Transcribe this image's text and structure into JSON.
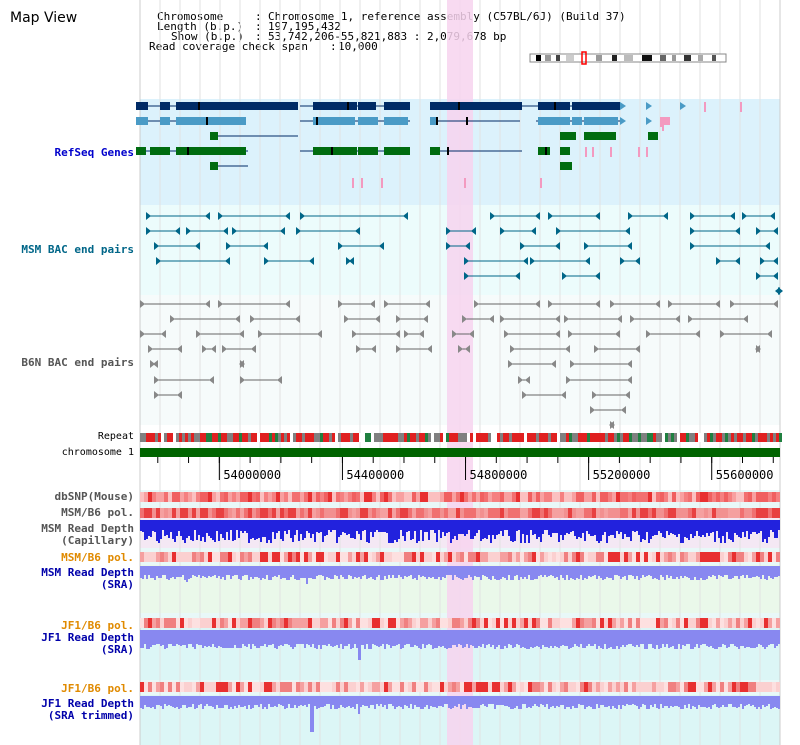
{
  "page": {
    "title": "Map View"
  },
  "header": {
    "chromosome_key": "Chromosome",
    "chromosome_val": "Chromosome 1, reference assembly (C57BL/6J) (Build 37)",
    "length_key": "Length (b.p.)",
    "length_val": "197,195,432",
    "show_key": "Show (b.p.)",
    "show_val": "53,742,206-55,821,883 : 2,079,678 bp",
    "coverage_key": "Read coverage check span",
    "coverage_val": "10,000"
  },
  "tracks": {
    "refseq": {
      "label": "RefSeq Genes",
      "color": "#0000cc"
    },
    "msm_bac": {
      "label": "MSM BAC end pairs",
      "color": "#006688"
    },
    "b6n_bac": {
      "label": "B6N BAC end pairs",
      "color": "#555555"
    },
    "repeat": {
      "label": "Repeat"
    },
    "chromosome": {
      "label": "chromosome 1"
    },
    "dbsnp": {
      "label": "dbSNP(Mouse)"
    },
    "msm_b6_pol_1": {
      "label": "MSM/B6 pol."
    },
    "msm_read_depth_cap": {
      "line1": "MSM Read Depth",
      "line2": "(Capillary)"
    },
    "msm_b6_pol_2": {
      "label": "MSM/B6 pol."
    },
    "msm_read_depth_sra": {
      "line1": "MSM Read Depth",
      "line2": "(SRA)"
    },
    "jf1_b6_pol_1": {
      "label": "JF1/B6 pol."
    },
    "jf1_read_depth_sra": {
      "line1": "JF1 Read Depth",
      "line2": "(SRA)"
    },
    "jf1_b6_pol_2": {
      "label": "JF1/B6 pol."
    },
    "jf1_read_depth_trim": {
      "line1": "JF1 Read Depth",
      "line2": "(SRA trimmed)"
    }
  },
  "axis": {
    "ticks": [
      {
        "value": 54000000,
        "label": "54000000"
      },
      {
        "value": 54400000,
        "label": "54400000"
      },
      {
        "value": 54800000,
        "label": "54800000"
      },
      {
        "value": 55200000,
        "label": "55200000"
      },
      {
        "value": 55600000,
        "label": "55600000"
      }
    ],
    "start": 53742206,
    "end": 55821883
  },
  "colors": {
    "refseq_bg": "#dcf2fc",
    "bac_bg": "#ecfcfc",
    "highlight": "#f7d4ef",
    "chrom_bar": "#006400",
    "gene_dark": "#002b66",
    "gene_mid": "#4a9bc6",
    "gene_green": "#006c10",
    "pink": "#f39ac0",
    "msm_label": "#006688",
    "b6n_label": "#555555",
    "blue_label": "#0000aa",
    "orange_label": "#e08a00",
    "depth_dark": "#2222dd",
    "depth_light": "#8888f0"
  }
}
